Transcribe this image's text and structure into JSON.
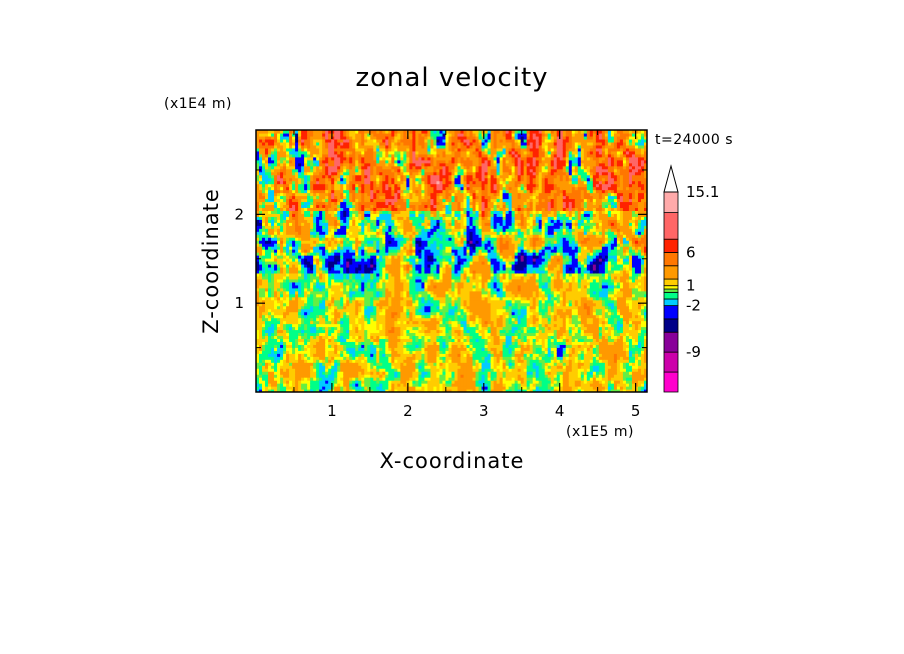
{
  "chart_data": {
    "type": "heatmap",
    "title": "zonal velocity",
    "xlabel": "X-coordinate",
    "ylabel": "Z-coordinate",
    "x_unit": "(x1E5 m)",
    "y_unit": "(x1E4 m)",
    "time_label": "t=24000 s",
    "xlim": [
      0,
      5.15
    ],
    "ylim": [
      0,
      2.95
    ],
    "x_ticks": [
      1,
      2,
      3,
      4,
      5
    ],
    "y_ticks": [
      1,
      2
    ],
    "colorbar": {
      "labels": [
        "15.1",
        "6",
        "1",
        "-2",
        "-9"
      ],
      "label_values": [
        15.1,
        6,
        1,
        -2,
        -9
      ],
      "extend": "max",
      "levels": [
        {
          "from": -15,
          "to": -12,
          "color": "#ff00cc"
        },
        {
          "from": -12,
          "to": -9,
          "color": "#cc00aa"
        },
        {
          "from": -9,
          "to": -6,
          "color": "#880099"
        },
        {
          "from": -6,
          "to": -4,
          "color": "#000088"
        },
        {
          "from": -4,
          "to": -2,
          "color": "#0000ff"
        },
        {
          "from": -2,
          "to": -1,
          "color": "#00ccff"
        },
        {
          "from": -1,
          "to": 0,
          "color": "#00ff88"
        },
        {
          "from": 0,
          "to": 0.5,
          "color": "#66ee44"
        },
        {
          "from": 0.5,
          "to": 1,
          "color": "#ffff00"
        },
        {
          "from": 1,
          "to": 2,
          "color": "#ffcc00"
        },
        {
          "from": 2,
          "to": 4,
          "color": "#ff9900"
        },
        {
          "from": 4,
          "to": 6,
          "color": "#ff7700"
        },
        {
          "from": 6,
          "to": 8,
          "color": "#ff2200"
        },
        {
          "from": 8,
          "to": 12,
          "color": "#ff6666"
        },
        {
          "from": 12,
          "to": 15.1,
          "color": "#ffaaaa"
        }
      ]
    },
    "grid": false,
    "legend": "right colorbar"
  }
}
